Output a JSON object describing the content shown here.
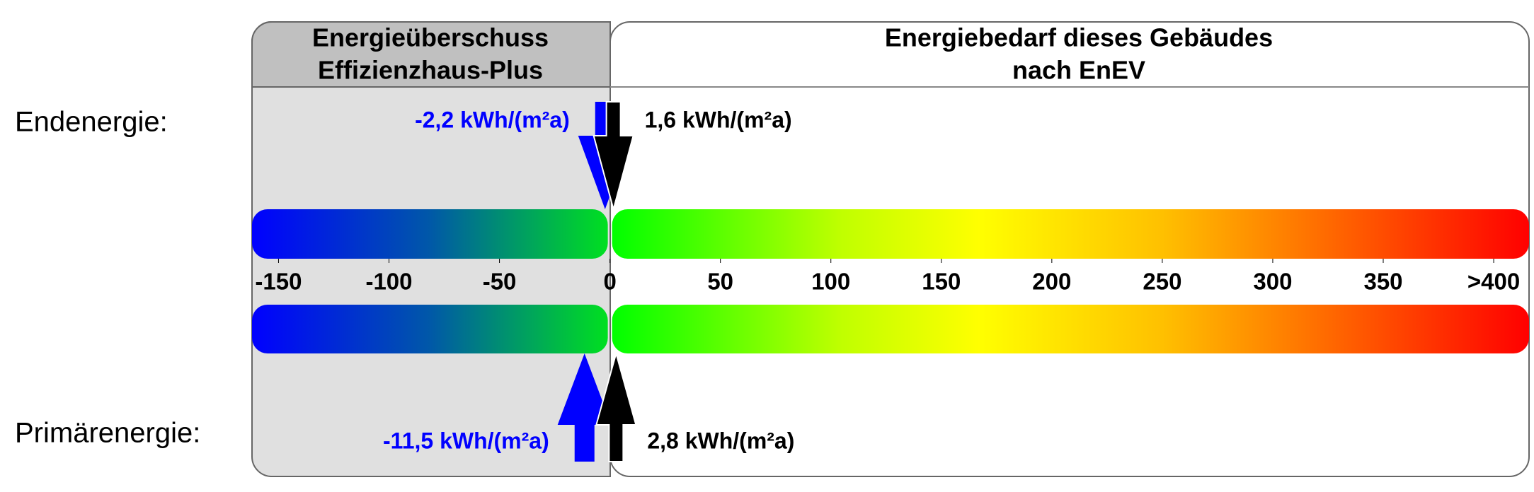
{
  "chart_data": {
    "type": "energy-scale",
    "left_header": [
      "Energieüberschuss",
      "Effizienzhaus-Plus"
    ],
    "right_header": [
      "Energiebedarf dieses Gebäudes",
      "nach EnEV"
    ],
    "xlim": [
      -162,
      416
    ],
    "xticks": [
      -150,
      -100,
      -50,
      0,
      50,
      100,
      150,
      200,
      250,
      300,
      350,
      {
        "value": 400,
        "label": ">400"
      }
    ],
    "rows": [
      {
        "label": "Endenergie:",
        "direction": "down",
        "values": [
          -2.2,
          1.6
        ],
        "value_labels": [
          "-2,2 kWh/(m²a)",
          "1,6 kWh/(m²a)"
        ],
        "colors": [
          "#0000ff",
          "#000000"
        ]
      },
      {
        "label": "Primärenergie:",
        "direction": "up",
        "values": [
          -11.5,
          2.8
        ],
        "value_labels": [
          "-11,5 kWh/(m²a)",
          "2,8 kWh/(m²a)"
        ],
        "colors": [
          "#0000ff",
          "#000000"
        ]
      }
    ]
  }
}
